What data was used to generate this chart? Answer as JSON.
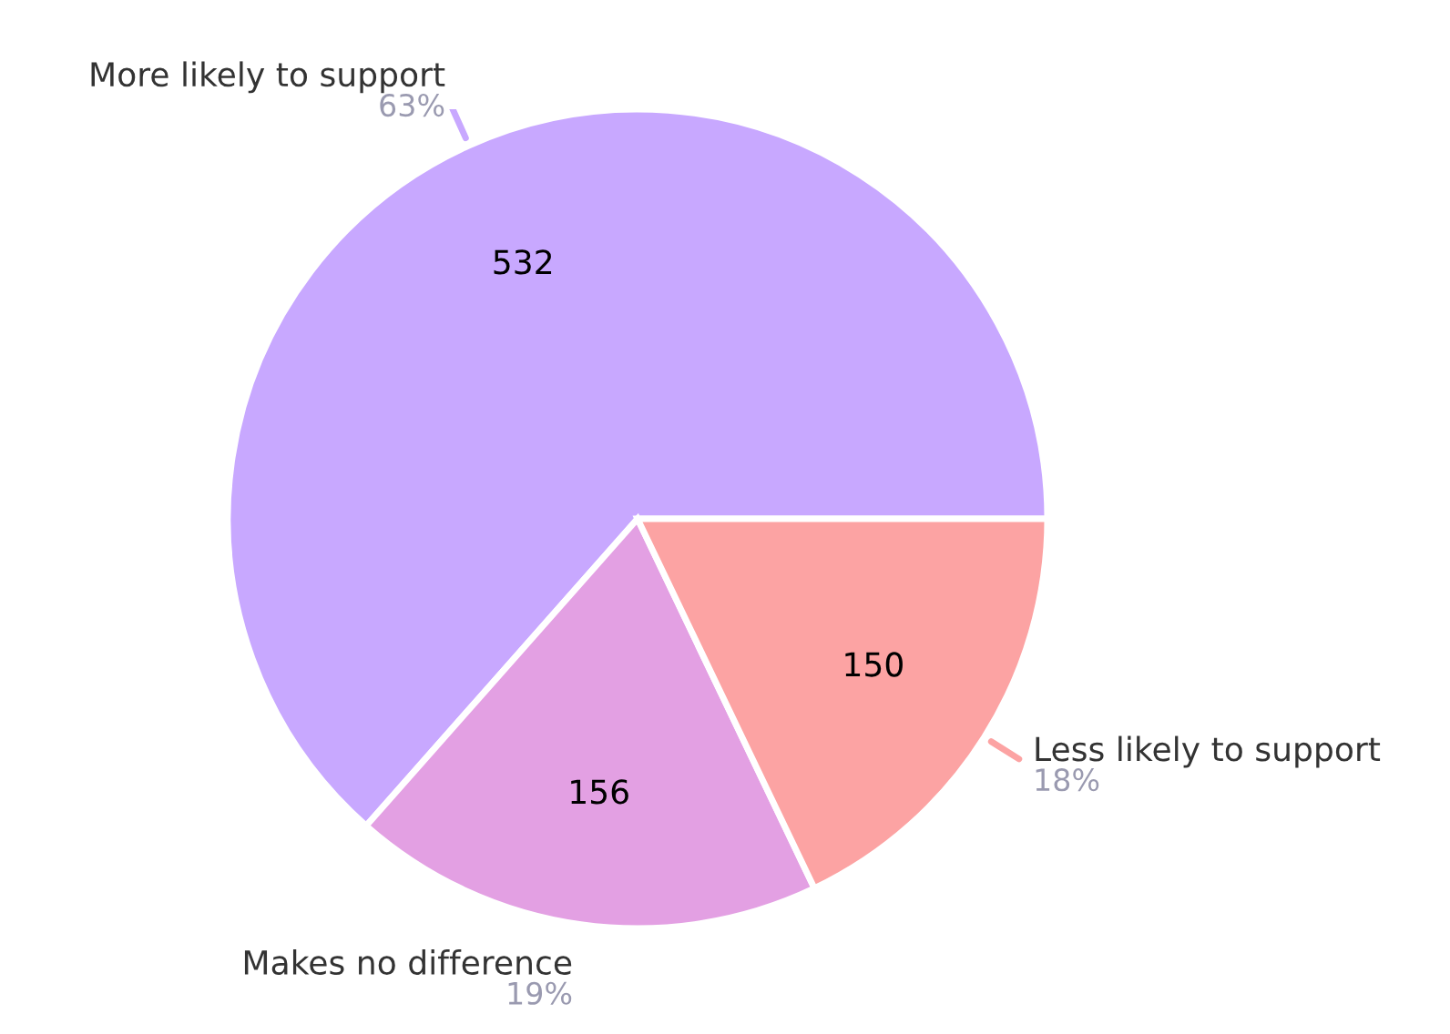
{
  "chart_data": {
    "type": "pie",
    "categories": [
      "More likely to support",
      "Makes no difference",
      "Less likely to support"
    ],
    "values": [
      532,
      156,
      150
    ],
    "colors": [
      "#c8a8ff",
      "#e3a0e3",
      "#fca3a3"
    ],
    "data_labels": true,
    "annotations": [
      "63%",
      "19%",
      "18%"
    ]
  }
}
